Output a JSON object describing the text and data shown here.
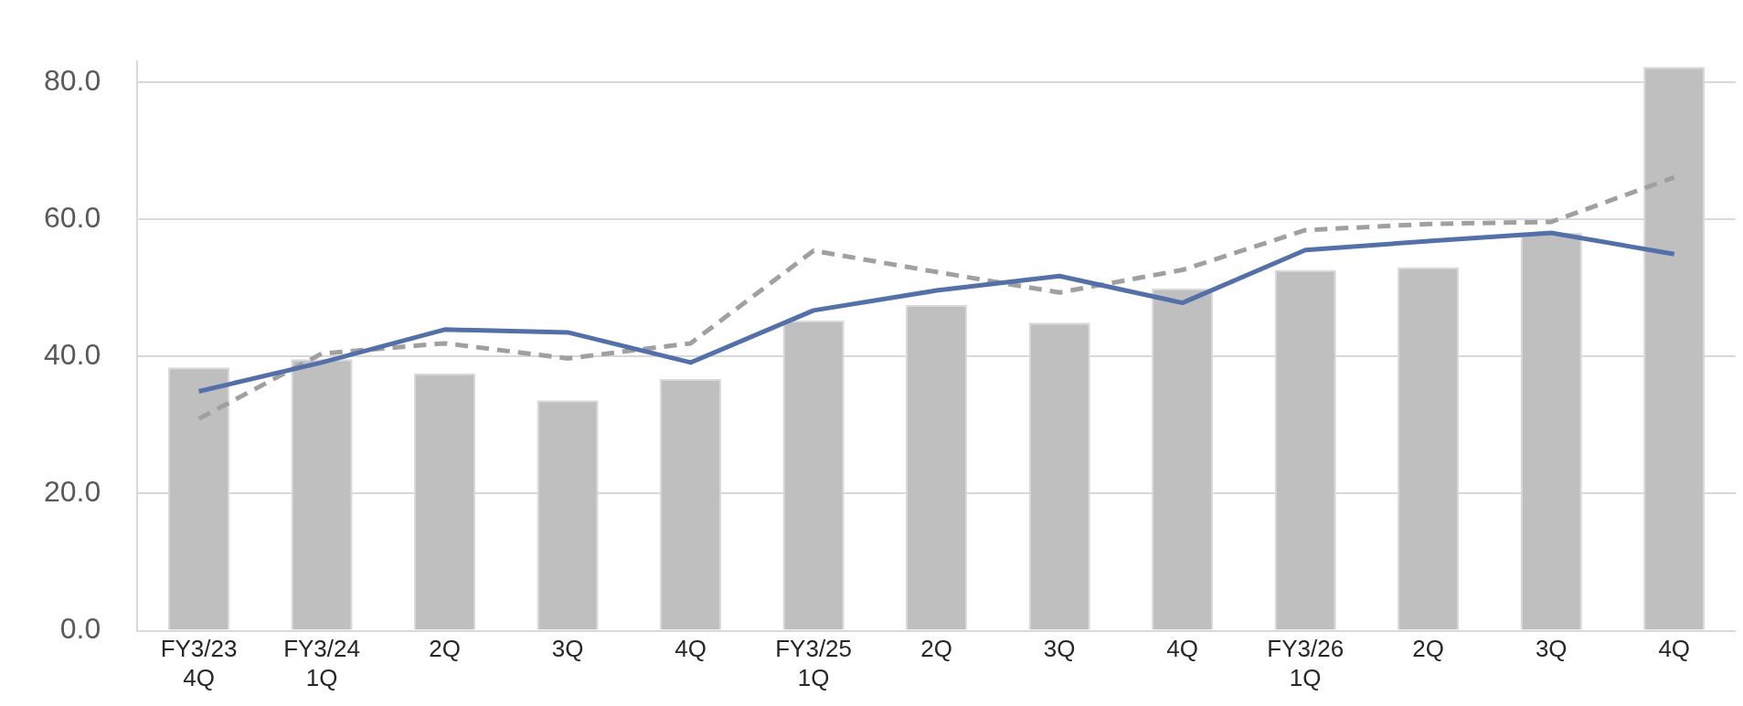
{
  "chart_data": {
    "type": "bar",
    "categories": [
      "FY3/23\n4Q",
      "FY3/24\n1Q",
      "2Q",
      "3Q",
      "4Q",
      "FY3/25\n1Q",
      "2Q",
      "3Q",
      "4Q",
      "FY3/26\n1Q",
      "2Q",
      "3Q",
      "4Q"
    ],
    "series": [
      {
        "color": "#bfbfbf",
        "values": [
          38.4,
          39.6,
          37.5,
          33.6,
          36.7,
          45.2,
          47.5,
          44.9,
          49.9,
          52.6,
          53.0,
          58.0,
          82.2
        ]
      },
      {
        "type": "line",
        "color": "#5470a8",
        "line_style": "solid",
        "values": [
          34.9,
          39.1,
          43.9,
          43.5,
          39.1,
          46.7,
          49.6,
          51.7,
          47.8,
          55.5,
          56.8,
          58.0,
          54.9
        ]
      },
      {
        "type": "line",
        "color": "#a0a0a0",
        "line_style": "dashed",
        "values": [
          30.9,
          40.4,
          41.9,
          39.7,
          41.9,
          55.4,
          52.3,
          49.3,
          52.6,
          58.4,
          59.3,
          59.6,
          66.1
        ]
      }
    ],
    "ylim": [
      0,
      83
    ],
    "yticks": [
      {
        "value": 0,
        "label": "0.0"
      },
      {
        "value": 20,
        "label": "20.0"
      },
      {
        "value": 40,
        "label": "40.0"
      },
      {
        "value": 60,
        "label": "60.0"
      },
      {
        "value": 80,
        "label": "80.0"
      }
    ],
    "grid": "y",
    "legend": false,
    "marker": "none"
  }
}
